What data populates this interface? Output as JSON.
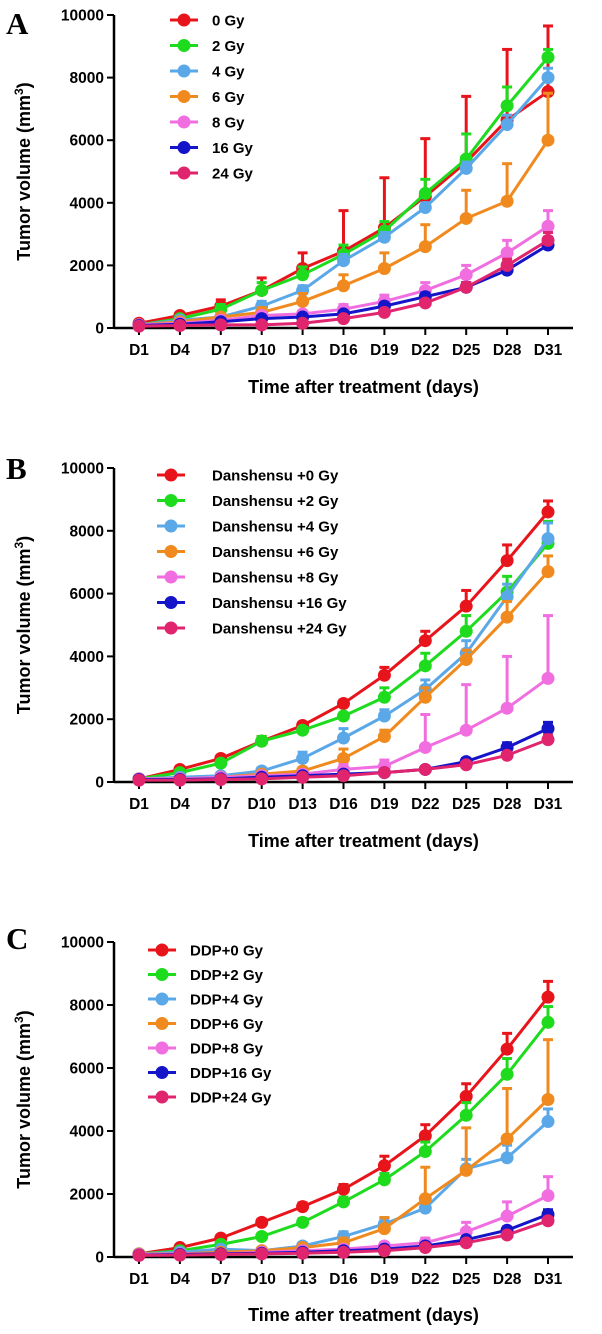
{
  "chart_data": [
    {
      "panel": "A",
      "type": "line",
      "xlabel": "Time after treatment (days)",
      "ylabel": "Tumor volume (mm",
      "ylabel_sup": "3",
      "ylabel_close": ")",
      "ylim": [
        0,
        10000
      ],
      "yticks": [
        "0",
        "2000",
        "4000",
        "6000",
        "8000",
        "10000"
      ],
      "categories": [
        "D1",
        "D4",
        "D7",
        "D10",
        "D13",
        "D16",
        "D19",
        "D22",
        "D25",
        "D28",
        "D31"
      ],
      "legend_position": "top-left",
      "series": [
        {
          "name": "0 Gy",
          "color": "#e8141b",
          "values": [
            150,
            400,
            700,
            1200,
            1900,
            2450,
            3200,
            4200,
            5300,
            6650,
            7550
          ],
          "err": [
            50,
            80,
            200,
            400,
            500,
            1300,
            1600,
            1850,
            2100,
            2250,
            2100
          ]
        },
        {
          "name": "2 Gy",
          "color": "#1edb1e",
          "values": [
            100,
            300,
            600,
            1200,
            1700,
            2350,
            3100,
            4300,
            5400,
            7100,
            8650
          ],
          "err": [
            40,
            60,
            150,
            250,
            250,
            300,
            300,
            450,
            800,
            600,
            250
          ]
        },
        {
          "name": "4 Gy",
          "color": "#5ba8e8",
          "values": [
            100,
            250,
            350,
            700,
            1200,
            2150,
            2900,
            3850,
            5100,
            6500,
            8000
          ],
          "err": [
            30,
            50,
            80,
            150,
            150,
            200,
            150,
            150,
            200,
            300,
            300
          ]
        },
        {
          "name": "6 Gy",
          "color": "#f08a1e",
          "values": [
            100,
            200,
            350,
            500,
            850,
            1350,
            1900,
            2600,
            3500,
            4050,
            6000
          ],
          "err": [
            30,
            40,
            80,
            150,
            250,
            350,
            500,
            700,
            900,
            1200,
            1500
          ]
        },
        {
          "name": "8 Gy",
          "color": "#f06ee0",
          "values": [
            100,
            150,
            250,
            400,
            450,
            600,
            850,
            1200,
            1700,
            2400,
            3250
          ],
          "err": [
            20,
            30,
            50,
            100,
            100,
            150,
            200,
            250,
            300,
            400,
            500
          ]
        },
        {
          "name": "16 Gy",
          "color": "#1414c8",
          "values": [
            80,
            120,
            200,
            300,
            350,
            450,
            700,
            1000,
            1300,
            1850,
            2650
          ],
          "err": [
            20,
            30,
            40,
            50,
            60,
            80,
            100,
            120,
            150,
            200,
            250
          ]
        },
        {
          "name": "24 Gy",
          "color": "#e0246e",
          "values": [
            60,
            80,
            100,
            100,
            150,
            300,
            500,
            800,
            1300,
            2000,
            2800
          ],
          "err": [
            10,
            20,
            30,
            30,
            40,
            60,
            80,
            100,
            150,
            200,
            250
          ]
        }
      ]
    },
    {
      "panel": "B",
      "type": "line",
      "xlabel": "Time after treatment (days)",
      "ylabel": "Tumor volume (mm",
      "ylabel_sup": "3",
      "ylabel_close": ")",
      "ylim": [
        0,
        10000
      ],
      "yticks": [
        "0",
        "2000",
        "4000",
        "6000",
        "8000",
        "10000"
      ],
      "categories": [
        "D1",
        "D4",
        "D7",
        "D10",
        "D13",
        "D16",
        "D19",
        "D22",
        "D25",
        "D28",
        "D31"
      ],
      "legend_position": "top-left",
      "series": [
        {
          "name": "Danshensu +0 Gy",
          "color": "#e8141b",
          "values": [
            100,
            400,
            750,
            1300,
            1800,
            2500,
            3400,
            4500,
            5600,
            7050,
            8600
          ],
          "err": [
            30,
            50,
            80,
            150,
            100,
            100,
            250,
            300,
            500,
            500,
            350
          ]
        },
        {
          "name": "Danshensu +2 Gy",
          "color": "#1edb1e",
          "values": [
            100,
            300,
            600,
            1300,
            1650,
            2100,
            2700,
            3700,
            4800,
            6050,
            7600
          ],
          "err": [
            30,
            50,
            80,
            150,
            100,
            100,
            300,
            400,
            500,
            500,
            700
          ]
        },
        {
          "name": "Danshensu +4 Gy",
          "color": "#5ba8e8",
          "values": [
            100,
            150,
            200,
            350,
            750,
            1400,
            2100,
            2950,
            4100,
            5900,
            7750
          ],
          "err": [
            30,
            50,
            60,
            100,
            200,
            300,
            200,
            300,
            400,
            400,
            500
          ]
        },
        {
          "name": "Danshensu +6 Gy",
          "color": "#f08a1e",
          "values": [
            100,
            100,
            150,
            250,
            350,
            750,
            1450,
            2700,
            3900,
            5250,
            6700
          ],
          "err": [
            30,
            40,
            50,
            80,
            100,
            300,
            200,
            300,
            300,
            500,
            500
          ]
        },
        {
          "name": "Danshensu +8 Gy",
          "color": "#f06ee0",
          "values": [
            100,
            100,
            150,
            200,
            250,
            400,
            500,
            1100,
            1650,
            2350,
            3300
          ],
          "err": [
            30,
            30,
            40,
            50,
            80,
            150,
            200,
            1050,
            1450,
            1650,
            2000
          ]
        },
        {
          "name": "Danshensu +16 Gy",
          "color": "#1414c8",
          "values": [
            80,
            80,
            100,
            150,
            200,
            250,
            300,
            400,
            650,
            1100,
            1700
          ],
          "err": [
            20,
            20,
            30,
            40,
            40,
            50,
            60,
            80,
            100,
            150,
            200
          ]
        },
        {
          "name": "Danshensu +24 Gy",
          "color": "#e0246e",
          "values": [
            60,
            60,
            80,
            100,
            150,
            200,
            300,
            400,
            550,
            850,
            1350
          ],
          "err": [
            10,
            20,
            20,
            30,
            30,
            40,
            50,
            60,
            80,
            100,
            150
          ]
        }
      ]
    },
    {
      "panel": "C",
      "type": "line",
      "xlabel": "Time after treatment (days)",
      "ylabel": "Tumor volume (mm",
      "ylabel_sup": "3",
      "ylabel_close": ")",
      "ylim": [
        0,
        10000
      ],
      "yticks": [
        "0",
        "2000",
        "4000",
        "6000",
        "8000",
        "10000"
      ],
      "categories": [
        "D1",
        "D4",
        "D7",
        "D10",
        "D13",
        "D16",
        "D19",
        "D22",
        "D25",
        "D28",
        "D31"
      ],
      "legend_position": "top-left",
      "series": [
        {
          "name": "DDP+0 Gy",
          "color": "#e8141b",
          "values": [
            100,
            300,
            600,
            1100,
            1600,
            2150,
            2900,
            3850,
            5100,
            6600,
            8250
          ],
          "err": [
            30,
            50,
            80,
            100,
            120,
            150,
            300,
            350,
            400,
            500,
            500
          ]
        },
        {
          "name": "DDP+2 Gy",
          "color": "#1edb1e",
          "values": [
            100,
            200,
            400,
            650,
            1100,
            1750,
            2450,
            3350,
            4500,
            5800,
            7450
          ],
          "err": [
            30,
            50,
            80,
            100,
            120,
            150,
            200,
            300,
            400,
            500,
            500
          ]
        },
        {
          "name": "DDP+4 Gy",
          "color": "#5ba8e8",
          "values": [
            100,
            150,
            250,
            200,
            350,
            650,
            1050,
            1550,
            2800,
            3150,
            4300
          ],
          "err": [
            30,
            40,
            50,
            60,
            100,
            150,
            200,
            250,
            300,
            400,
            400
          ]
        },
        {
          "name": "DDP+6 Gy",
          "color": "#f08a1e",
          "values": [
            100,
            100,
            150,
            200,
            300,
            450,
            900,
            1850,
            2750,
            3750,
            5000
          ],
          "err": [
            30,
            30,
            40,
            50,
            80,
            150,
            350,
            1000,
            1350,
            1600,
            1900
          ]
        },
        {
          "name": "DDP+8 Gy",
          "color": "#f06ee0",
          "values": [
            80,
            100,
            100,
            150,
            200,
            250,
            350,
            450,
            800,
            1300,
            1950
          ],
          "err": [
            20,
            20,
            30,
            30,
            50,
            80,
            100,
            150,
            300,
            450,
            600
          ]
        },
        {
          "name": "DDP+16 Gy",
          "color": "#1414c8",
          "values": [
            60,
            80,
            100,
            120,
            150,
            200,
            250,
            350,
            550,
            850,
            1350
          ],
          "err": [
            10,
            20,
            20,
            30,
            30,
            40,
            50,
            60,
            80,
            100,
            150
          ]
        },
        {
          "name": "DDP+24 Gy",
          "color": "#e0246e",
          "values": [
            50,
            60,
            80,
            100,
            120,
            150,
            200,
            300,
            450,
            700,
            1150
          ],
          "err": [
            10,
            10,
            20,
            20,
            30,
            30,
            40,
            50,
            60,
            80,
            100
          ]
        }
      ]
    }
  ],
  "panels": [
    {
      "letter": "A"
    },
    {
      "letter": "B"
    },
    {
      "letter": "C"
    }
  ]
}
